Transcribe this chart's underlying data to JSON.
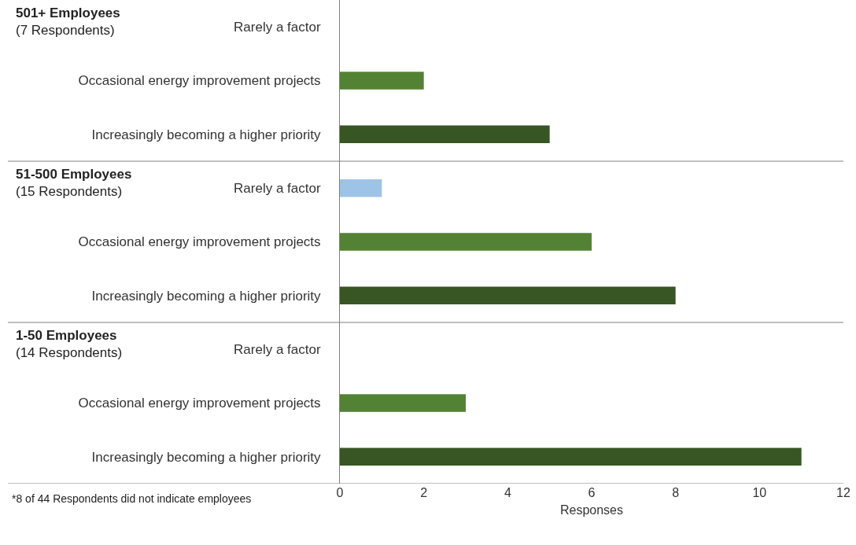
{
  "chart_data": {
    "type": "bar",
    "orientation": "horizontal",
    "xlabel": "Responses",
    "categories": [
      "Rarely a factor",
      "Occasional energy improvement projects",
      "Increasingly becoming a higher priority",
      "Rarely a factor",
      "Occasional energy improvement projects",
      "Increasingly becoming a higher priority",
      "Rarely a factor",
      "Occasional energy improvement projects",
      "Increasingly becoming a higher priority"
    ],
    "values": [
      0,
      2,
      5,
      1,
      6,
      8,
      0,
      3,
      11
    ],
    "colors": [
      "#9dc3e6",
      "#548235",
      "#375623",
      "#9dc3e6",
      "#548235",
      "#375623",
      "#9dc3e6",
      "#548235",
      "#375623"
    ],
    "xlim": [
      0,
      12
    ],
    "xticks": [
      0,
      2,
      4,
      6,
      8,
      10,
      12
    ],
    "annotations": [
      "501+ Employees\n(7 Respondents)",
      "51-500 Employees\n(15 Respondents)",
      "1-50 Employees\n(14 Respondents)",
      "*8 of 44 Respondents did not indicate employees"
    ]
  }
}
